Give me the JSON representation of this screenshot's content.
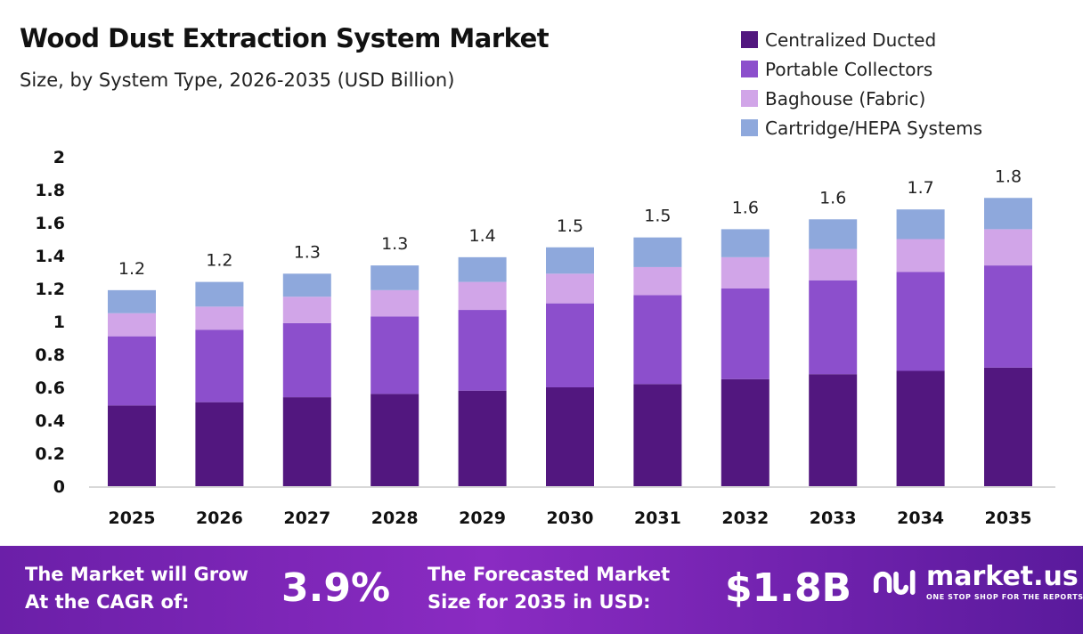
{
  "chart_data": {
    "type": "bar",
    "stacked": true,
    "title": "Wood Dust Extraction System Market",
    "subtitle": "Size, by System Type, 2026-2035 (USD Billion)",
    "categories": [
      "2025",
      "2026",
      "2027",
      "2028",
      "2029",
      "2030",
      "2031",
      "2032",
      "2033",
      "2034",
      "2035"
    ],
    "series": [
      {
        "name": "Centralized Ducted",
        "color": "#52177f",
        "values": [
          0.49,
          0.51,
          0.54,
          0.56,
          0.58,
          0.6,
          0.62,
          0.65,
          0.68,
          0.7,
          0.72
        ]
      },
      {
        "name": "Portable Collectors",
        "color": "#8c4fcc",
        "values": [
          0.42,
          0.44,
          0.45,
          0.47,
          0.49,
          0.51,
          0.54,
          0.55,
          0.57,
          0.6,
          0.62
        ]
      },
      {
        "name": "Baghouse (Fabric)",
        "color": "#d1a5e8",
        "values": [
          0.14,
          0.14,
          0.16,
          0.16,
          0.17,
          0.18,
          0.17,
          0.19,
          0.19,
          0.2,
          0.22
        ]
      },
      {
        "name": "Cartridge/HEPA Systems",
        "color": "#8ea8dc",
        "values": [
          0.14,
          0.15,
          0.14,
          0.15,
          0.15,
          0.16,
          0.18,
          0.17,
          0.18,
          0.18,
          0.19
        ]
      }
    ],
    "totals_labels": [
      "1.2",
      "1.2",
      "1.3",
      "1.3",
      "1.4",
      "1.5",
      "1.5",
      "1.6",
      "1.6",
      "1.7",
      "1.8"
    ],
    "yticks": [
      "0",
      "0.2",
      "0.4",
      "0.6",
      "0.8",
      "1",
      "1.2",
      "1.4",
      "1.6",
      "1.8",
      "2"
    ],
    "ylim": [
      0,
      2
    ],
    "xlabel": "",
    "ylabel": "",
    "grid": false,
    "legend": "top-right"
  },
  "banner": {
    "cagr_label": [
      "The Market will Grow",
      "At the CAGR of:"
    ],
    "cagr_value": "3.9%",
    "forecast_label": [
      "The Forecasted Market",
      "Size for 2035 in USD:"
    ],
    "forecast_value": "$1.8B",
    "logo_text": "market.us",
    "logo_tagline": "ONE STOP SHOP FOR THE REPORTS"
  }
}
